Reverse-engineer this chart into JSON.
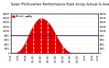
{
  "title": "Solar PV/Inverter Performance East Array Actual & Average Power Output",
  "legend_actual": "Actual",
  "legend_avg": "Avg",
  "ylim": [
    0,
    1800
  ],
  "xlim": [
    0,
    47
  ],
  "avg_power": 800,
  "bar_color": "#dd0000",
  "avg_line_color": "#0000cc",
  "background_color": "#ffffff",
  "grid_color": "#bbbbbb",
  "title_fontsize": 3.8,
  "tick_fontsize": 3.0,
  "x_tick_positions": [
    0,
    4,
    8,
    12,
    16,
    20,
    24,
    28,
    32,
    36,
    40,
    44,
    47
  ],
  "x_tick_labels": [
    "5:00",
    "7:00",
    "9:00",
    "11:00",
    "13:00",
    "15:00",
    "17:00",
    "19:00",
    "21:00",
    "23:00",
    "1:00",
    "3:00",
    "5:00"
  ],
  "y_tick_positions": [
    0,
    200,
    400,
    600,
    800,
    1000,
    1200,
    1400,
    1600,
    1800
  ],
  "values": [
    0,
    0,
    5,
    20,
    60,
    130,
    230,
    370,
    530,
    710,
    900,
    1080,
    1230,
    1370,
    1480,
    1560,
    1590,
    1580,
    1550,
    1500,
    1420,
    1320,
    1190,
    1040,
    880,
    720,
    570,
    430,
    310,
    210,
    130,
    70,
    30,
    10,
    2,
    0,
    0,
    0,
    0,
    0,
    0,
    0,
    0,
    0,
    0,
    0,
    0,
    0
  ],
  "vgrid_positions": [
    8,
    12,
    16,
    20,
    24,
    28,
    32
  ]
}
